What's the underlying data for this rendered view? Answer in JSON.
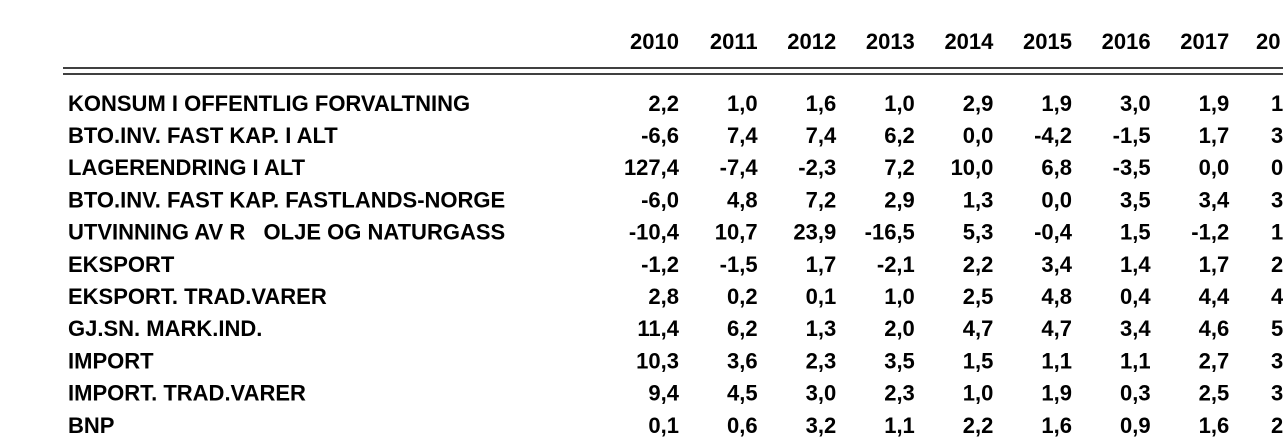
{
  "table": {
    "header": [
      "2010",
      "2011",
      "2012",
      "2013",
      "2014",
      "2015",
      "2016",
      "2017",
      "20"
    ],
    "rows": [
      {
        "label": "KONSUM I OFFENTLIG FORVALTNING",
        "cells": [
          "2,2",
          "1,0",
          "1,6",
          "1,0",
          "2,9",
          "1,9",
          "3,0",
          "1,9",
          "1"
        ]
      },
      {
        "label": "BTO.INV. FAST KAP. I ALT",
        "cells": [
          "-6,6",
          "7,4",
          "7,4",
          "6,2",
          "0,0",
          "-4,2",
          "-1,5",
          "1,7",
          "3"
        ]
      },
      {
        "label": "LAGERENDRING I ALT",
        "cells": [
          "127,4",
          "-7,4",
          "-2,3",
          "7,2",
          "10,0",
          "6,8",
          "-3,5",
          "0,0",
          "0"
        ]
      },
      {
        "label": "BTO.INV. FAST KAP. FASTLANDS-NORGE",
        "cells": [
          "-6,0",
          "4,8",
          "7,2",
          "2,9",
          "1,3",
          "0,0",
          "3,5",
          "3,4",
          "3"
        ]
      },
      {
        "label": "UTVINNING AV R   OLJE OG NATURGASS",
        "cells": [
          "-10,4",
          "10,7",
          "23,9",
          "-16,5",
          "5,3",
          "-0,4",
          "1,5",
          "-1,2",
          "1"
        ]
      },
      {
        "label": "EKSPORT",
        "cells": [
          "-1,2",
          "-1,5",
          "1,7",
          "-2,1",
          "2,2",
          "3,4",
          "1,4",
          "1,7",
          "2"
        ]
      },
      {
        "label": "EKSPORT. TRAD.VARER",
        "cells": [
          "2,8",
          "0,2",
          "0,1",
          "1,0",
          "2,5",
          "4,8",
          "0,4",
          "4,4",
          "4"
        ]
      },
      {
        "label": "GJ.SN. MARK.IND.",
        "cells": [
          "11,4",
          "6,2",
          "1,3",
          "2,0",
          "4,7",
          "4,7",
          "3,4",
          "4,6",
          "5"
        ]
      },
      {
        "label": "IMPORT",
        "cells": [
          "10,3",
          "3,6",
          "2,3",
          "3,5",
          "1,5",
          "1,1",
          "1,1",
          "2,7",
          "3"
        ]
      },
      {
        "label": "IMPORT. TRAD.VARER",
        "cells": [
          "9,4",
          "4,5",
          "3,0",
          "2,3",
          "1,0",
          "1,9",
          "0,3",
          "2,5",
          "3"
        ]
      },
      {
        "label": "BNP",
        "cells": [
          "0,1",
          "0,6",
          "3,2",
          "1,1",
          "2,2",
          "1,6",
          "0,9",
          "1,6",
          "2"
        ]
      }
    ]
  }
}
